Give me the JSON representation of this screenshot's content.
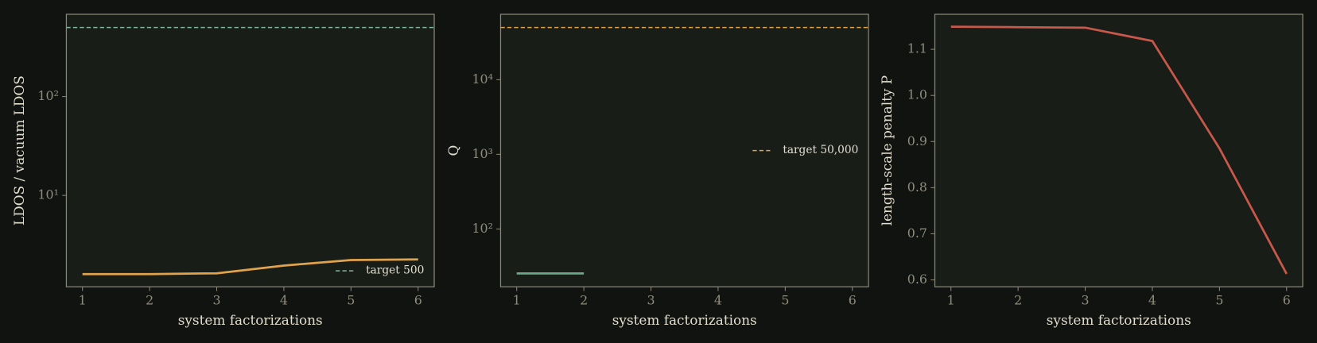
{
  "chart_data": [
    {
      "type": "line",
      "xlabel": "system factorizations",
      "ylabel": "LDOS / vacuum LDOS",
      "yscale": "log",
      "x": [
        1,
        2,
        3,
        4,
        5,
        6
      ],
      "xlim": [
        0.76,
        6.24
      ],
      "xticks": [
        1,
        2,
        3,
        4,
        5,
        6
      ],
      "ylim": [
        1.19,
        680
      ],
      "yticks": [
        {
          "value": 10,
          "label": "10¹"
        },
        {
          "value": 100,
          "label": "10²"
        }
      ],
      "series": [
        {
          "color": "#e0a24a",
          "values": [
            1.6,
            1.6,
            1.63,
            1.95,
            2.22,
            2.25
          ]
        }
      ],
      "reference_lines": [
        {
          "name": "target 500",
          "value": 500,
          "color": "#7fb5a0",
          "style": "dashed"
        }
      ],
      "legend": "lower right"
    },
    {
      "type": "line",
      "xlabel": "system factorizations",
      "ylabel": "Q",
      "yscale": "log",
      "x": [
        1,
        2,
        3,
        4,
        5,
        6
      ],
      "xlim": [
        0.76,
        6.24
      ],
      "xticks": [
        1,
        2,
        3,
        4,
        5,
        6
      ],
      "ylim": [
        16.8,
        75200
      ],
      "yticks": [
        {
          "value": 100,
          "label": "10²"
        },
        {
          "value": 1000,
          "label": "10³"
        },
        {
          "value": 10000,
          "label": "10⁴"
        }
      ],
      "series": [
        {
          "color": "#6aaa8a",
          "values": [
            25.4,
            25.4,
            null,
            null,
            null,
            null
          ]
        }
      ],
      "reference_lines": [
        {
          "name": "target 50,000",
          "value": 50000,
          "color": "#e0a24a",
          "style": "dashed"
        }
      ],
      "legend": "center right"
    },
    {
      "type": "line",
      "xlabel": "system factorizations",
      "ylabel": "length-scale penalty P",
      "yscale": "linear",
      "x": [
        1,
        2,
        3,
        4,
        5,
        6
      ],
      "xlim": [
        0.76,
        6.24
      ],
      "xticks": [
        1,
        2,
        3,
        4,
        5,
        6
      ],
      "ylim": [
        0.585,
        1.176
      ],
      "yticks": [
        0.6,
        0.7,
        0.8,
        0.9,
        {
          "value": 1,
          "label": "1.0"
        },
        1.1
      ],
      "series": [
        {
          "color": "#c8584a",
          "values": [
            1.149,
            1.148,
            1.147,
            1.118,
            0.885,
            0.613
          ]
        }
      ]
    }
  ]
}
